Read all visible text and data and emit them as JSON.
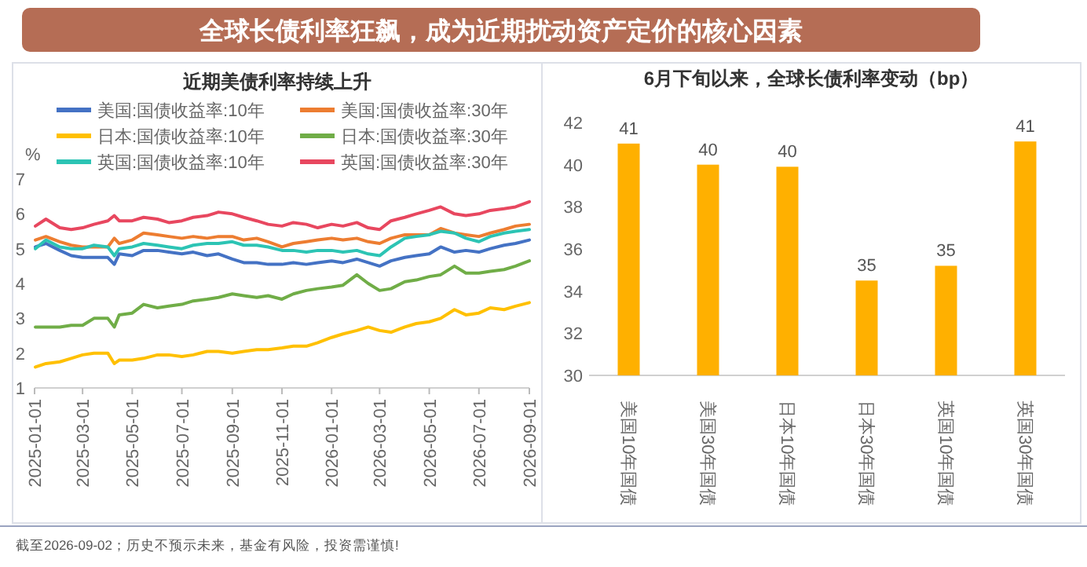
{
  "chart_data": [
    {
      "type": "other",
      "title": "全球长债利率狂飙，成为近期扰动资产定价的核心因素",
      "annotations": [
        "截至2026-09-02；历史不预示未来，基金有风险，投资需谨慎!"
      ]
    },
    {
      "type": "line",
      "title": "近期美债利率持续上升",
      "ylabel": "%",
      "legend": "top",
      "xlim": [
        "2025-01-01",
        "2026-09-01"
      ],
      "xticks": [
        "2025-01-01",
        "2025-03-01",
        "2025-05-01",
        "2025-07-01",
        "2025-09-01",
        "2025-11-01",
        "2026-01-01",
        "2026-03-01",
        "2026-05-01",
        "2026-07-01",
        "2026-09-01"
      ],
      "ylim": [
        1,
        7
      ],
      "yticks": [
        1,
        2,
        3,
        4,
        5,
        6,
        7
      ],
      "x": [
        "2025-01-02",
        "2025-01-15",
        "2025-02-01",
        "2025-02-15",
        "2025-03-01",
        "2025-03-15",
        "2025-04-01",
        "2025-04-09",
        "2025-04-15",
        "2025-05-01",
        "2025-05-15",
        "2025-06-01",
        "2025-06-15",
        "2025-07-01",
        "2025-07-15",
        "2025-08-01",
        "2025-08-15",
        "2025-09-01",
        "2025-09-15",
        "2025-10-01",
        "2025-10-15",
        "2025-11-01",
        "2025-11-15",
        "2025-12-01",
        "2025-12-15",
        "2026-01-01",
        "2026-01-15",
        "2026-02-01",
        "2026-02-15",
        "2026-03-01",
        "2026-03-15",
        "2026-04-01",
        "2026-04-15",
        "2026-05-01",
        "2026-05-15",
        "2026-06-01",
        "2026-06-15",
        "2026-07-01",
        "2026-07-15",
        "2026-08-01",
        "2026-08-15",
        "2026-09-01"
      ],
      "series": [
        {
          "name": "美国:国债收益率:10年",
          "color": "#4472c4",
          "values": [
            5.05,
            5.15,
            4.95,
            4.8,
            4.75,
            4.75,
            4.75,
            4.55,
            4.85,
            4.8,
            4.95,
            4.95,
            4.9,
            4.85,
            4.9,
            4.8,
            4.85,
            4.7,
            4.6,
            4.6,
            4.55,
            4.55,
            4.6,
            4.55,
            4.6,
            4.65,
            4.6,
            4.7,
            4.6,
            4.5,
            4.65,
            4.75,
            4.8,
            4.85,
            5.05,
            4.9,
            4.95,
            4.9,
            5.0,
            5.1,
            5.15,
            5.25
          ]
        },
        {
          "name": "美国:国债收益率:30年",
          "color": "#ed7d31",
          "values": [
            5.25,
            5.35,
            5.2,
            5.1,
            5.05,
            5.05,
            5.05,
            5.3,
            5.15,
            5.25,
            5.45,
            5.4,
            5.35,
            5.3,
            5.35,
            5.3,
            5.35,
            5.35,
            5.25,
            5.3,
            5.2,
            5.05,
            5.15,
            5.2,
            5.25,
            5.3,
            5.25,
            5.3,
            5.2,
            5.15,
            5.3,
            5.4,
            5.4,
            5.4,
            5.58,
            5.45,
            5.4,
            5.35,
            5.45,
            5.55,
            5.65,
            5.7
          ]
        },
        {
          "name": "日本:国债收益率:10年",
          "color": "#ffc000",
          "values": [
            1.6,
            1.7,
            1.75,
            1.85,
            1.95,
            2.0,
            2.0,
            1.7,
            1.8,
            1.8,
            1.85,
            1.95,
            1.95,
            1.9,
            1.95,
            2.05,
            2.05,
            2.0,
            2.05,
            2.1,
            2.1,
            2.15,
            2.2,
            2.2,
            2.3,
            2.45,
            2.55,
            2.65,
            2.75,
            2.65,
            2.6,
            2.75,
            2.85,
            2.9,
            3.0,
            3.25,
            3.1,
            3.15,
            3.3,
            3.25,
            3.35,
            3.45
          ]
        },
        {
          "name": "日本:国债收益率:30年",
          "color": "#70ad47",
          "values": [
            2.75,
            2.75,
            2.75,
            2.8,
            2.8,
            3.0,
            3.0,
            2.75,
            3.1,
            3.15,
            3.4,
            3.3,
            3.35,
            3.4,
            3.5,
            3.55,
            3.6,
            3.7,
            3.65,
            3.6,
            3.65,
            3.55,
            3.7,
            3.8,
            3.85,
            3.9,
            3.95,
            4.25,
            4.0,
            3.8,
            3.85,
            4.05,
            4.1,
            4.2,
            4.25,
            4.5,
            4.3,
            4.3,
            4.35,
            4.4,
            4.5,
            4.65
          ]
        },
        {
          "name": "英国:国债收益率:10年",
          "color": "#2cc4b4",
          "values": [
            5.0,
            5.25,
            5.05,
            5.0,
            5.0,
            5.1,
            5.05,
            4.8,
            5.0,
            5.05,
            5.15,
            5.1,
            5.05,
            5.0,
            5.1,
            5.15,
            5.15,
            5.2,
            5.1,
            5.1,
            5.05,
            4.95,
            4.95,
            4.9,
            4.95,
            4.95,
            4.9,
            4.95,
            4.85,
            4.8,
            5.05,
            5.3,
            5.35,
            5.4,
            5.5,
            5.45,
            5.3,
            5.2,
            5.35,
            5.45,
            5.5,
            5.55
          ]
        },
        {
          "name": "英国:国债收益率:30年",
          "color": "#e8475f",
          "values": [
            5.65,
            5.85,
            5.6,
            5.55,
            5.6,
            5.7,
            5.8,
            5.95,
            5.8,
            5.8,
            5.9,
            5.85,
            5.75,
            5.8,
            5.9,
            5.95,
            6.05,
            6.0,
            5.9,
            5.8,
            5.7,
            5.65,
            5.75,
            5.7,
            5.6,
            5.7,
            5.65,
            5.75,
            5.6,
            5.55,
            5.8,
            5.9,
            6.0,
            6.1,
            6.2,
            6.0,
            5.95,
            6.0,
            6.1,
            6.15,
            6.2,
            6.35
          ]
        }
      ]
    },
    {
      "type": "bar",
      "title": "6月下旬以来，全球长债利率变动（bp）",
      "categories": [
        "美国10年国债",
        "美国30年国债",
        "日本10年国债",
        "日本30年国债",
        "英国10年国债",
        "英国30年国债"
      ],
      "values": [
        41.0,
        40.0,
        39.9,
        34.5,
        35.2,
        41.1
      ],
      "value_labels": [
        "41",
        "40",
        "40",
        "35",
        "35",
        "41"
      ],
      "color": "#ffb000",
      "ylim": [
        30,
        42
      ],
      "yticks": [
        30,
        32,
        34,
        36,
        38,
        40,
        42
      ]
    }
  ]
}
